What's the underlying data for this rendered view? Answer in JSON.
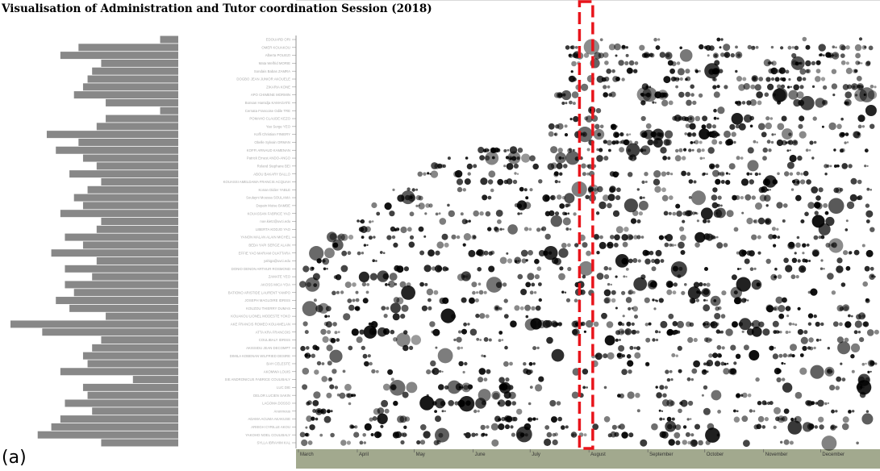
{
  "title": "Visualisation of Administration and Tutor coordination Session (2018)",
  "panel_label": "(a)",
  "chart_data": {
    "type": "scatter",
    "title": "Visualisation of Administration and Tutor coordination Session (2018)",
    "x_axis": {
      "type": "time",
      "months": [
        "March",
        "April",
        "May",
        "June",
        "July",
        "August",
        "September",
        "October",
        "November",
        "December"
      ]
    },
    "highlight": {
      "type": "dashed-box",
      "color": "#e8141b",
      "x_start": "2018-07-27",
      "x_end": "2018-08-03"
    },
    "participants": [
      "EDOUARD ORI",
      "OMER KOUAKOU",
      "Alberta POLIEZI",
      "Mata Welfrid MORIE",
      "Sondais Babas ZAMRA",
      "DOGBO JEAN JUNIOR AKOUELE",
      "ZIKARIA KONE",
      "APO CHIMENE MORMIN",
      "Bonsan Hamidja KAMAGATE",
      "Cernata Francoise Odile TRE",
      "POMAHO CLAUDE KEZO",
      "Yao Serge YEO",
      "Koffi Christian FINIERY",
      "Obelle Sylvain ORMAN",
      "KOFFI ARNAUD KAMENAN",
      "Patrick Ernest ANDO-ANGO",
      "Roland Stephane BEI",
      "ABOU BAKARY BALLO",
      "KOUASSI AMELDAMA FRANCIS ACQUAH",
      "Konan Didier YABLE",
      "Soulayni Moussa SOULAMA",
      "Depain Moise BAMBE",
      "KOUASSAN FABRICE YAO",
      "noe.kietz@uvci.edu",
      "LIBERTA KODJO YAO",
      "YANON MALAN ALAIN MICHEL",
      "BEDA YAPI SERGE ALAIN",
      "EFFIE YAO MARIAM OUATTARA",
      "yahiga@uvci.edu",
      "DONIO DENON ARTHUR ROSMOND",
      "ZAMATE YEO",
      "AKOSS MICA YOA",
      "BATIONO ARISTIDE LAURENT YAMPO",
      "JOSEPH MAGLOIRE IDRISS",
      "KOUZOU THIERRY DUMAS",
      "KOUAKOU LIONEL MODESTE YOKO",
      "AKE FRANCIS ROMEO KOUAMELAN",
      "ATTA KRA FRANCOIS",
      "COULIBALY IDRISS",
      "AKISSIDU JEAN DECOMPT",
      "DIMILA KOBENAN WILFRIED DESIRE",
      "BAH CELESTE",
      "AKOMWA LOUIS",
      "SIE ANDRONICUS FABRICE COULIBALY",
      "LUC DIE",
      "DELOR LUCIEN SAKIN",
      "LAGOMA DOSSO",
      "Anonmous",
      "ADAMA ACUMA AKAKUSE",
      "ARIEGH CYRILLE AKOU",
      "YAKOHO NOEL COULIBALY",
      "SYLLA IBRAHIM KAL"
    ],
    "activity": [
      4,
      22,
      26,
      17,
      19,
      20,
      21,
      23,
      16,
      4,
      16,
      18,
      29,
      22,
      27,
      21,
      18,
      24,
      17,
      20,
      23,
      21,
      26,
      17,
      18,
      25,
      21,
      28,
      18,
      25,
      19,
      25,
      23,
      27,
      24,
      16,
      37,
      30,
      17,
      19,
      21,
      20,
      26,
      10,
      21,
      20,
      25,
      19,
      26,
      28,
      31,
      17
    ]
  }
}
